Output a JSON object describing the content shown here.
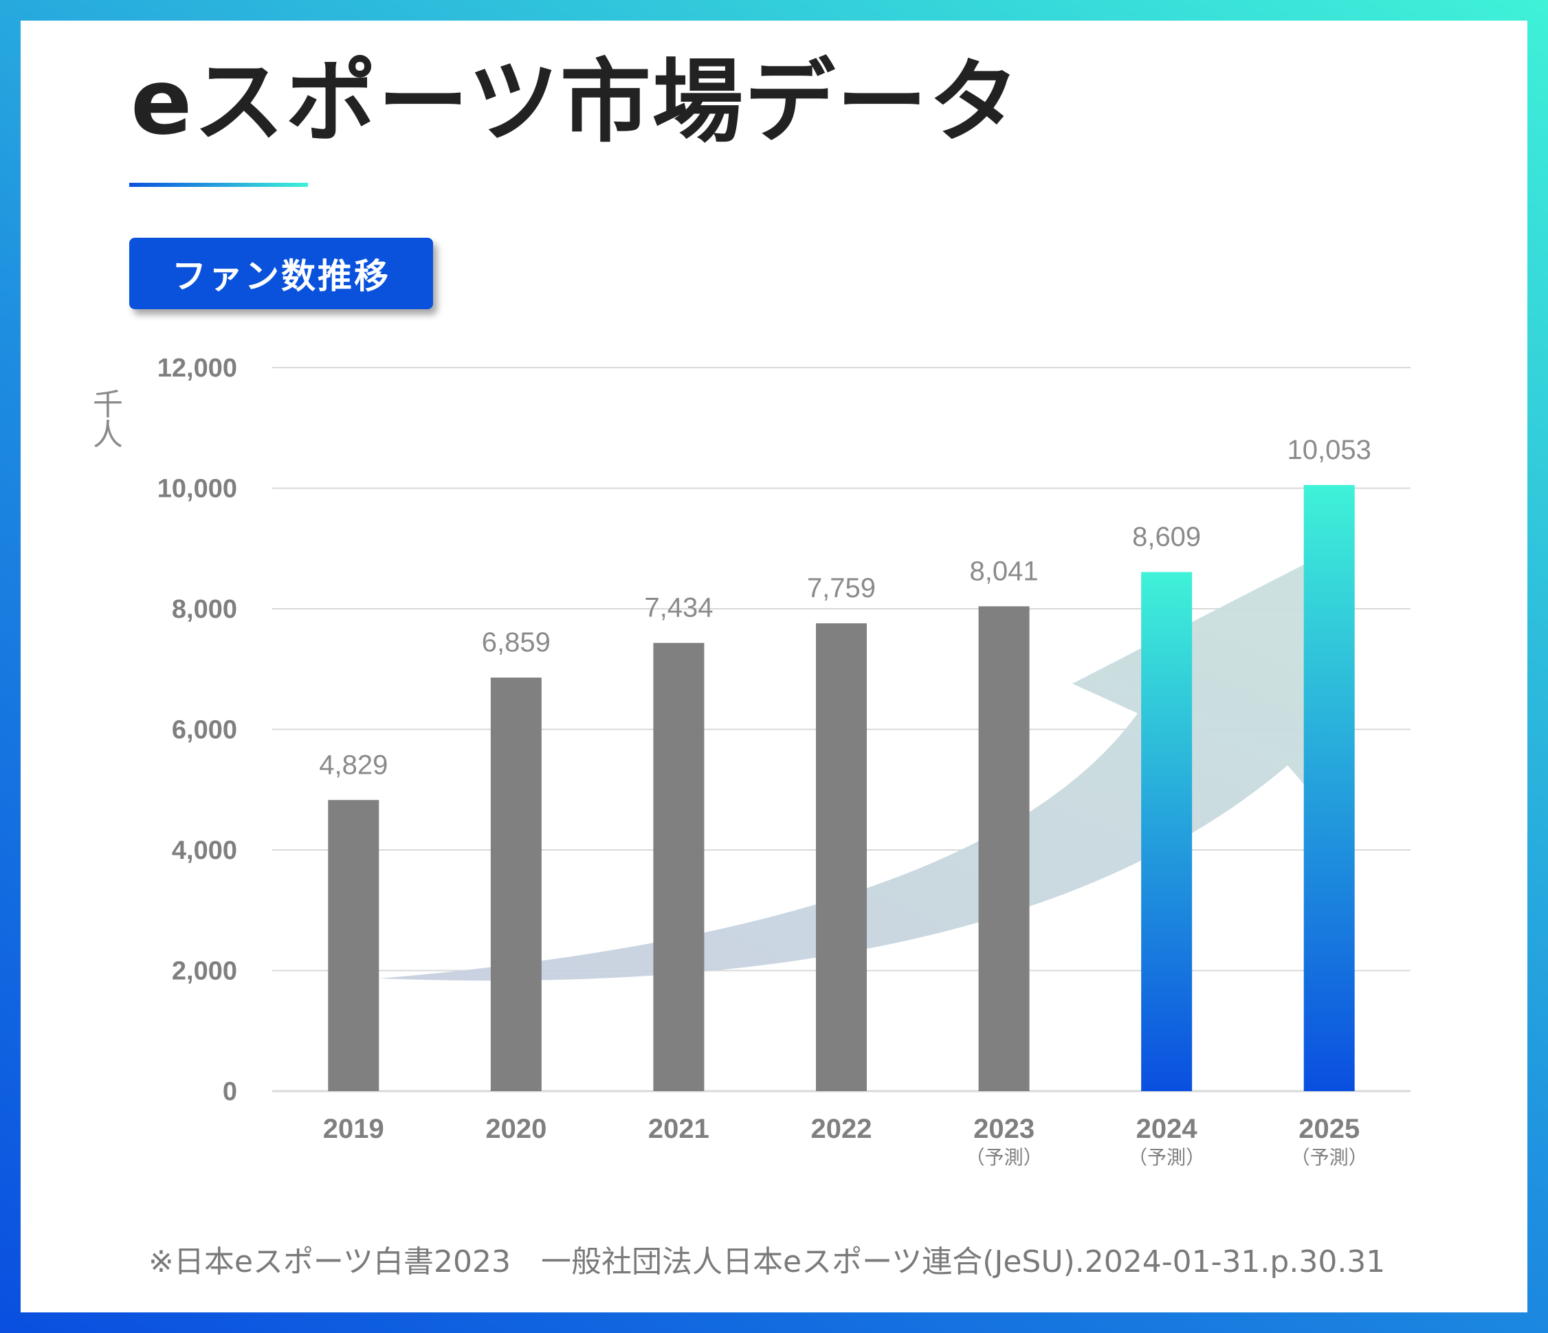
{
  "title": "eスポーツ市場データ",
  "badge": "ファン数推移",
  "unit_label": "千人",
  "source": "※日本eスポーツ白書2023　一般社団法人日本eスポーツ連合(JeSU).2024-01-31.p.30.31",
  "colors": {
    "actual_bar": "#808080",
    "forecast_bar_top": "#3ff2d8",
    "forecast_bar_bottom": "#0a4fe0",
    "arrow": "#bccfdc",
    "grid": "#d9d9d9",
    "frame_start": "#0a4fe0",
    "frame_end": "#3ff2d8"
  },
  "chart_data": {
    "type": "bar",
    "categories": [
      "2019",
      "2020",
      "2021",
      "2022",
      "2023",
      "2024",
      "2025"
    ],
    "category_notes": [
      "",
      "",
      "",
      "",
      "（予測）",
      "（予測）",
      "（予測）"
    ],
    "values": [
      4829,
      6859,
      7434,
      7759,
      8041,
      8609,
      10053
    ],
    "data_labels": [
      "4,829",
      "6,859",
      "7,434",
      "7,759",
      "8,041",
      "8,609",
      "10,053"
    ],
    "highlighted": [
      false,
      false,
      false,
      false,
      false,
      true,
      true
    ],
    "yticks": [
      0,
      2000,
      4000,
      6000,
      8000,
      10000,
      12000
    ],
    "ytick_labels": [
      "0",
      "2,000",
      "4,000",
      "6,000",
      "8,000",
      "10,000",
      "12,000"
    ],
    "ylim": [
      0,
      12000
    ],
    "grid": true,
    "ylabel": "千人",
    "decoration": "upward trend arrow"
  }
}
